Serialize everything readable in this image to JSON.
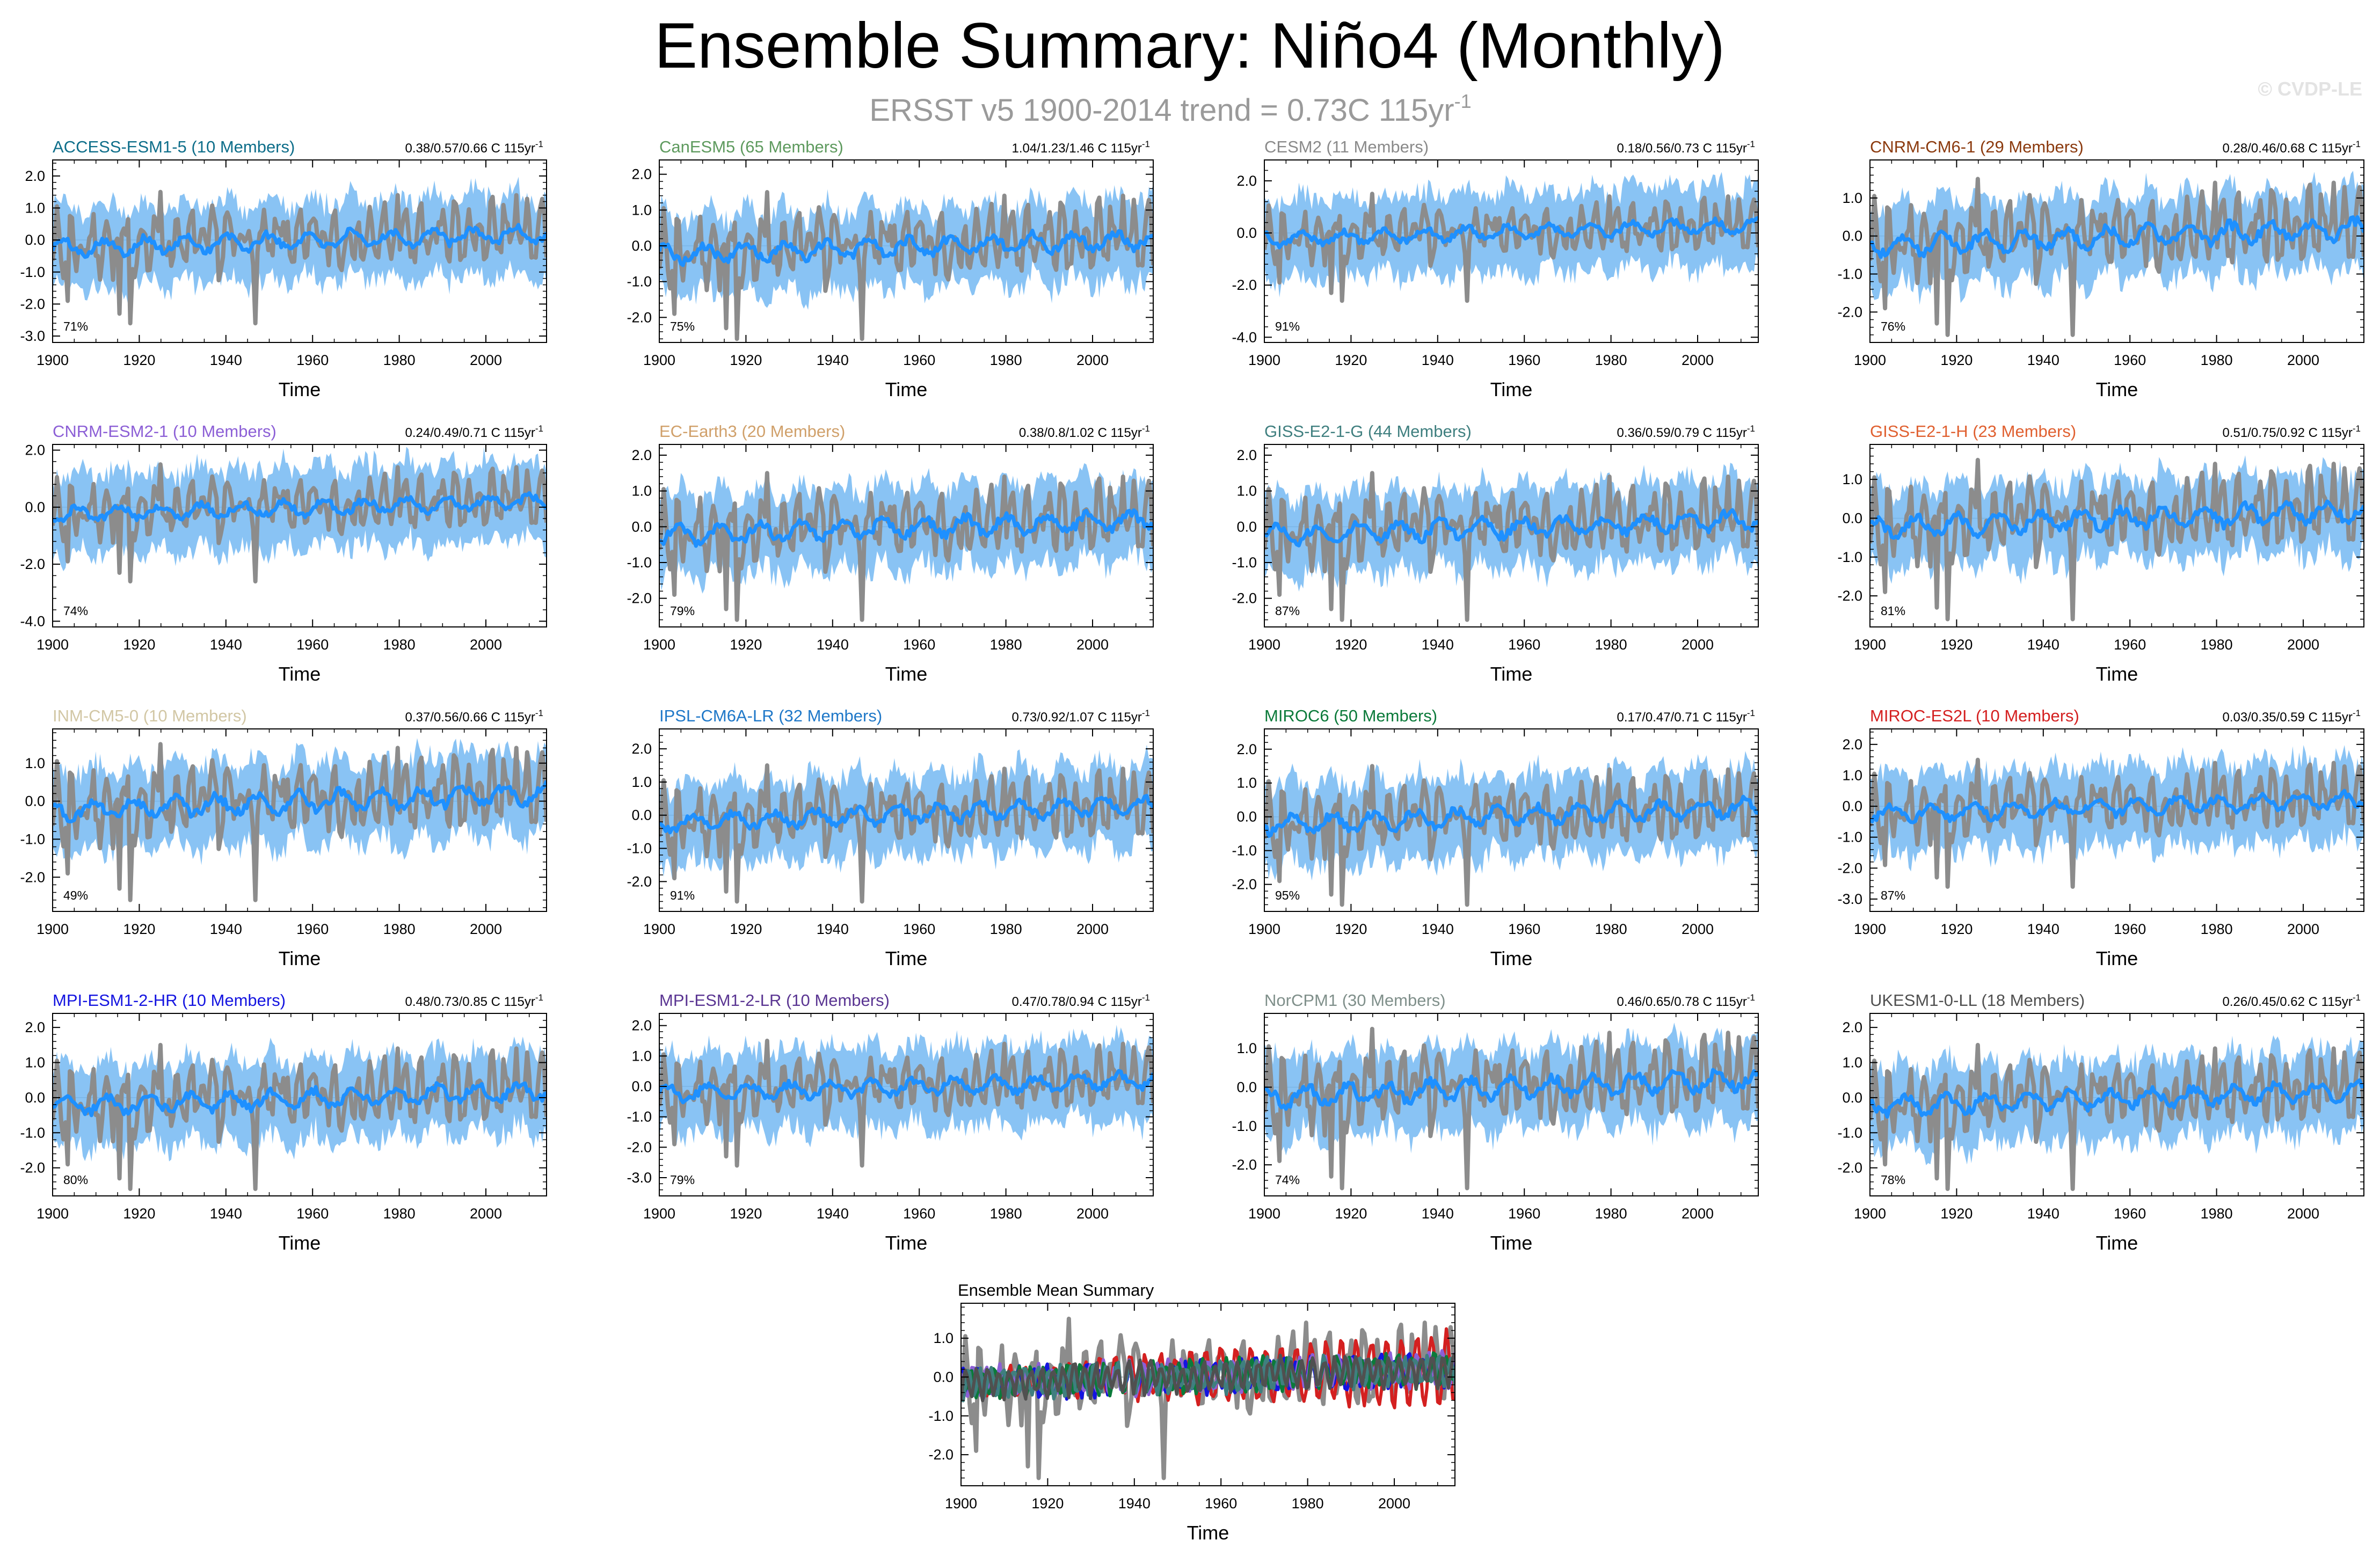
{
  "header": {
    "title": "Ensemble Summary: Niño4 (Monthly)",
    "subtitle_main": "ERSST v5 1900-2014 trend = 0.73C 115yr",
    "subtitle_exp": "-1",
    "copyright": "© CVDP-LE"
  },
  "colors": {
    "observations": "#8c8c8c",
    "ensemble_spread": "#74b9f2",
    "ensemble_mean": "#1e90ff",
    "zero_line": "#9a9a9a"
  },
  "x_tick_labels": [
    "1900",
    "1920",
    "1940",
    "1960",
    "1980",
    "2000"
  ],
  "chart_data": [
    {
      "type": "line",
      "title": "ACCESS-ESM1-5 (10 Members)",
      "title_color": "#0e6e8a",
      "stats": "0.38/0.57/0.66 C 115yr",
      "stats_exp": "-1",
      "percent": "71%",
      "xlabel": "Time",
      "xlim": [
        1900,
        2014
      ],
      "ylim": [
        -3.2,
        2.5
      ],
      "yticks": [
        2.0,
        1.0,
        0.0,
        -1.0,
        -2.0,
        -3.0
      ],
      "ytick_labels": [
        "2.0",
        "1.0",
        "0.0",
        "-1.0",
        "-2.0",
        "-3.0"
      ],
      "series": [
        {
          "name": "ERSST v5 (observed)",
          "color": "#8c8c8c"
        },
        {
          "name": "ensemble mean",
          "color": "#1e90ff"
        },
        {
          "name": "ensemble spread",
          "color": "#74b9f2"
        }
      ]
    },
    {
      "type": "line",
      "title": "CanESM5 (65 Members)",
      "title_color": "#5e9a5e",
      "stats": "1.04/1.23/1.46 C 115yr",
      "stats_exp": "-1",
      "percent": "75%",
      "xlabel": "Time",
      "xlim": [
        1900,
        2014
      ],
      "ylim": [
        -2.7,
        2.4
      ],
      "yticks": [
        2.0,
        1.0,
        0.0,
        -1.0,
        -2.0
      ],
      "ytick_labels": [
        "2.0",
        "1.0",
        "0.0",
        "-1.0",
        "-2.0"
      ],
      "series": [
        {
          "name": "ERSST v5 (observed)",
          "color": "#8c8c8c"
        },
        {
          "name": "ensemble mean",
          "color": "#1e90ff"
        },
        {
          "name": "ensemble spread",
          "color": "#74b9f2"
        }
      ]
    },
    {
      "type": "line",
      "title": "CESM2 (11 Members)",
      "title_color": "#8a8a8a",
      "stats": "0.18/0.56/0.73 C 115yr",
      "stats_exp": "-1",
      "percent": "91%",
      "xlabel": "Time",
      "xlim": [
        1900,
        2014
      ],
      "ylim": [
        -4.2,
        2.8
      ],
      "yticks": [
        2.0,
        0.0,
        -2.0,
        -4.0
      ],
      "ytick_labels": [
        "2.0",
        "0.0",
        "-2.0",
        "-4.0"
      ],
      "series": [
        {
          "name": "ERSST v5 (observed)",
          "color": "#8c8c8c"
        },
        {
          "name": "ensemble mean",
          "color": "#1e90ff"
        },
        {
          "name": "ensemble spread",
          "color": "#74b9f2"
        }
      ]
    },
    {
      "type": "line",
      "title": "CNRM-CM6-1 (29 Members)",
      "title_color": "#8b3a0e",
      "stats": "0.28/0.46/0.68 C 115yr",
      "stats_exp": "-1",
      "percent": "76%",
      "xlabel": "Time",
      "xlim": [
        1900,
        2014
      ],
      "ylim": [
        -2.8,
        2.0
      ],
      "yticks": [
        1.0,
        0.0,
        -1.0,
        -2.0
      ],
      "ytick_labels": [
        "1.0",
        "0.0",
        "-1.0",
        "-2.0"
      ],
      "series": [
        {
          "name": "ERSST v5 (observed)",
          "color": "#8c8c8c"
        },
        {
          "name": "ensemble mean",
          "color": "#1e90ff"
        },
        {
          "name": "ensemble spread",
          "color": "#74b9f2"
        }
      ]
    },
    {
      "type": "line",
      "title": "CNRM-ESM2-1 (10 Members)",
      "title_color": "#8c5fd6",
      "stats": "0.24/0.49/0.71 C 115yr",
      "stats_exp": "-1",
      "percent": "74%",
      "xlabel": "Time",
      "xlim": [
        1900,
        2014
      ],
      "ylim": [
        -4.2,
        2.2
      ],
      "yticks": [
        2.0,
        0.0,
        -2.0,
        -4.0
      ],
      "ytick_labels": [
        "2.0",
        "0.0",
        "-2.0",
        "-4.0"
      ],
      "series": [
        {
          "name": "ERSST v5 (observed)",
          "color": "#8c8c8c"
        },
        {
          "name": "ensemble mean",
          "color": "#1e90ff"
        },
        {
          "name": "ensemble spread",
          "color": "#74b9f2"
        }
      ]
    },
    {
      "type": "line",
      "title": "EC-Earth3 (20 Members)",
      "title_color": "#d0a06a",
      "stats": "0.38/0.8/1.02 C 115yr",
      "stats_exp": "-1",
      "percent": "79%",
      "xlabel": "Time",
      "xlim": [
        1900,
        2014
      ],
      "ylim": [
        -2.8,
        2.3
      ],
      "yticks": [
        2.0,
        1.0,
        0.0,
        -1.0,
        -2.0
      ],
      "ytick_labels": [
        "2.0",
        "1.0",
        "0.0",
        "-1.0",
        "-2.0"
      ],
      "series": [
        {
          "name": "ERSST v5 (observed)",
          "color": "#8c8c8c"
        },
        {
          "name": "ensemble mean",
          "color": "#1e90ff"
        },
        {
          "name": "ensemble spread",
          "color": "#74b9f2"
        }
      ]
    },
    {
      "type": "line",
      "title": "GISS-E2-1-G (44 Members)",
      "title_color": "#3f7f7f",
      "stats": "0.36/0.59/0.79 C 115yr",
      "stats_exp": "-1",
      "percent": "87%",
      "xlabel": "Time",
      "xlim": [
        1900,
        2014
      ],
      "ylim": [
        -2.8,
        2.3
      ],
      "yticks": [
        2.0,
        1.0,
        0.0,
        -1.0,
        -2.0
      ],
      "ytick_labels": [
        "2.0",
        "1.0",
        "0.0",
        "-1.0",
        "-2.0"
      ],
      "series": [
        {
          "name": "ERSST v5 (observed)",
          "color": "#8c8c8c"
        },
        {
          "name": "ensemble mean",
          "color": "#1e90ff"
        },
        {
          "name": "ensemble spread",
          "color": "#74b9f2"
        }
      ]
    },
    {
      "type": "line",
      "title": "GISS-E2-1-H (23 Members)",
      "title_color": "#e06030",
      "stats": "0.51/0.75/0.92 C 115yr",
      "stats_exp": "-1",
      "percent": "81%",
      "xlabel": "Time",
      "xlim": [
        1900,
        2014
      ],
      "ylim": [
        -2.8,
        1.9
      ],
      "yticks": [
        1.0,
        0.0,
        -1.0,
        -2.0
      ],
      "ytick_labels": [
        "1.0",
        "0.0",
        "-1.0",
        "-2.0"
      ],
      "series": [
        {
          "name": "ERSST v5 (observed)",
          "color": "#8c8c8c"
        },
        {
          "name": "ensemble mean",
          "color": "#1e90ff"
        },
        {
          "name": "ensemble spread",
          "color": "#74b9f2"
        }
      ]
    },
    {
      "type": "line",
      "title": "INM-CM5-0 (10 Members)",
      "title_color": "#d2c7a5",
      "stats": "0.37/0.56/0.66 C 115yr",
      "stats_exp": "-1",
      "percent": "49%",
      "xlabel": "Time",
      "xlim": [
        1900,
        2014
      ],
      "ylim": [
        -2.9,
        1.9
      ],
      "yticks": [
        1.0,
        0.0,
        -1.0,
        -2.0
      ],
      "ytick_labels": [
        "1.0",
        "0.0",
        "-1.0",
        "-2.0"
      ],
      "series": [
        {
          "name": "ERSST v5 (observed)",
          "color": "#8c8c8c"
        },
        {
          "name": "ensemble mean",
          "color": "#1e90ff"
        },
        {
          "name": "ensemble spread",
          "color": "#74b9f2"
        }
      ]
    },
    {
      "type": "line",
      "title": "IPSL-CM6A-LR (32 Members)",
      "title_color": "#1f78c8",
      "stats": "0.73/0.92/1.07 C 115yr",
      "stats_exp": "-1",
      "percent": "91%",
      "xlabel": "Time",
      "xlim": [
        1900,
        2014
      ],
      "ylim": [
        -2.9,
        2.6
      ],
      "yticks": [
        2.0,
        1.0,
        0.0,
        -1.0,
        -2.0
      ],
      "ytick_labels": [
        "2.0",
        "1.0",
        "0.0",
        "-1.0",
        "-2.0"
      ],
      "series": [
        {
          "name": "ERSST v5 (observed)",
          "color": "#8c8c8c"
        },
        {
          "name": "ensemble mean",
          "color": "#1e90ff"
        },
        {
          "name": "ensemble spread",
          "color": "#74b9f2"
        }
      ]
    },
    {
      "type": "line",
      "title": "MIROC6 (50 Members)",
      "title_color": "#0b7a3a",
      "stats": "0.17/0.47/0.71 C 115yr",
      "stats_exp": "-1",
      "percent": "95%",
      "xlabel": "Time",
      "xlim": [
        1900,
        2014
      ],
      "ylim": [
        -2.8,
        2.6
      ],
      "yticks": [
        2.0,
        1.0,
        0.0,
        -1.0,
        -2.0
      ],
      "ytick_labels": [
        "2.0",
        "1.0",
        "0.0",
        "-1.0",
        "-2.0"
      ],
      "series": [
        {
          "name": "ERSST v5 (observed)",
          "color": "#8c8c8c"
        },
        {
          "name": "ensemble mean",
          "color": "#1e90ff"
        },
        {
          "name": "ensemble spread",
          "color": "#74b9f2"
        }
      ]
    },
    {
      "type": "line",
      "title": "MIROC-ES2L (10 Members)",
      "title_color": "#d42020",
      "stats": "0.03/0.35/0.59 C 115yr",
      "stats_exp": "-1",
      "percent": "87%",
      "xlabel": "Time",
      "xlim": [
        1900,
        2014
      ],
      "ylim": [
        -3.4,
        2.5
      ],
      "yticks": [
        2.0,
        1.0,
        0.0,
        -1.0,
        -2.0,
        -3.0
      ],
      "ytick_labels": [
        "2.0",
        "1.0",
        "0.0",
        "-1.0",
        "-2.0",
        "-3.0"
      ],
      "series": [
        {
          "name": "ERSST v5 (observed)",
          "color": "#8c8c8c"
        },
        {
          "name": "ensemble mean",
          "color": "#1e90ff"
        },
        {
          "name": "ensemble spread",
          "color": "#74b9f2"
        }
      ]
    },
    {
      "type": "line",
      "title": "MPI-ESM1-2-HR (10 Members)",
      "title_color": "#1414e0",
      "stats": "0.48/0.73/0.85 C 115yr",
      "stats_exp": "-1",
      "percent": "80%",
      "xlabel": "Time",
      "xlim": [
        1900,
        2014
      ],
      "ylim": [
        -2.8,
        2.4
      ],
      "yticks": [
        2.0,
        1.0,
        0.0,
        -1.0,
        -2.0
      ],
      "ytick_labels": [
        "2.0",
        "1.0",
        "0.0",
        "-1.0",
        "-2.0"
      ],
      "series": [
        {
          "name": "ERSST v5 (observed)",
          "color": "#8c8c8c"
        },
        {
          "name": "ensemble mean",
          "color": "#1e90ff"
        },
        {
          "name": "ensemble spread",
          "color": "#74b9f2"
        }
      ]
    },
    {
      "type": "line",
      "title": "MPI-ESM1-2-LR (10 Members)",
      "title_color": "#5a3592",
      "stats": "0.47/0.78/0.94 C 115yr",
      "stats_exp": "-1",
      "percent": "79%",
      "xlabel": "Time",
      "xlim": [
        1900,
        2014
      ],
      "ylim": [
        -3.6,
        2.4
      ],
      "yticks": [
        2.0,
        1.0,
        0.0,
        -1.0,
        -2.0,
        -3.0
      ],
      "ytick_labels": [
        "2.0",
        "1.0",
        "0.0",
        "-1.0",
        "-2.0",
        "-3.0"
      ],
      "series": [
        {
          "name": "ERSST v5 (observed)",
          "color": "#8c8c8c"
        },
        {
          "name": "ensemble mean",
          "color": "#1e90ff"
        },
        {
          "name": "ensemble spread",
          "color": "#74b9f2"
        }
      ]
    },
    {
      "type": "line",
      "title": "NorCPM1 (30 Members)",
      "title_color": "#7f8f8a",
      "stats": "0.46/0.65/0.78 C 115yr",
      "stats_exp": "-1",
      "percent": "74%",
      "xlabel": "Time",
      "xlim": [
        1900,
        2014
      ],
      "ylim": [
        -2.8,
        1.9
      ],
      "yticks": [
        1.0,
        0.0,
        -1.0,
        -2.0
      ],
      "ytick_labels": [
        "1.0",
        "0.0",
        "-1.0",
        "-2.0"
      ],
      "series": [
        {
          "name": "ERSST v5 (observed)",
          "color": "#8c8c8c"
        },
        {
          "name": "ensemble mean",
          "color": "#1e90ff"
        },
        {
          "name": "ensemble spread",
          "color": "#74b9f2"
        }
      ]
    },
    {
      "type": "line",
      "title": "UKESM1-0-LL (18 Members)",
      "title_color": "#505050",
      "stats": "0.26/0.45/0.62 C 115yr",
      "stats_exp": "-1",
      "percent": "78%",
      "xlabel": "Time",
      "xlim": [
        1900,
        2014
      ],
      "ylim": [
        -2.8,
        2.4
      ],
      "yticks": [
        2.0,
        1.0,
        0.0,
        -1.0,
        -2.0
      ],
      "ytick_labels": [
        "2.0",
        "1.0",
        "0.0",
        "-1.0",
        "-2.0"
      ],
      "series": [
        {
          "name": "ERSST v5 (observed)",
          "color": "#8c8c8c"
        },
        {
          "name": "ensemble mean",
          "color": "#1e90ff"
        },
        {
          "name": "ensemble spread",
          "color": "#74b9f2"
        }
      ]
    },
    {
      "type": "line",
      "title": "Ensemble Mean Summary",
      "title_color": "#000000",
      "stats": "",
      "stats_exp": "",
      "percent": "",
      "xlabel": "Time",
      "xlim": [
        1900,
        2014
      ],
      "ylim": [
        -2.8,
        1.9
      ],
      "yticks": [
        1.0,
        0.0,
        -1.0,
        -2.0
      ],
      "ytick_labels": [
        "1.0",
        "0.0",
        "-1.0",
        "-2.0"
      ],
      "series": [
        {
          "name": "ERSST v5 (observed)",
          "color": "#8c8c8c"
        },
        {
          "name": "MIROC-ES2L",
          "color": "#d42020"
        },
        {
          "name": "MPI-ESM1-2-HR",
          "color": "#1414e0"
        },
        {
          "name": "CNRM-ESM2-1",
          "color": "#8c5fd6"
        },
        {
          "name": "MIROC6",
          "color": "#0b7a3a"
        },
        {
          "name": "GISS-E2-1-G",
          "color": "#3f7f7f"
        },
        {
          "name": "UKESM1-0-LL",
          "color": "#505050"
        }
      ]
    }
  ]
}
